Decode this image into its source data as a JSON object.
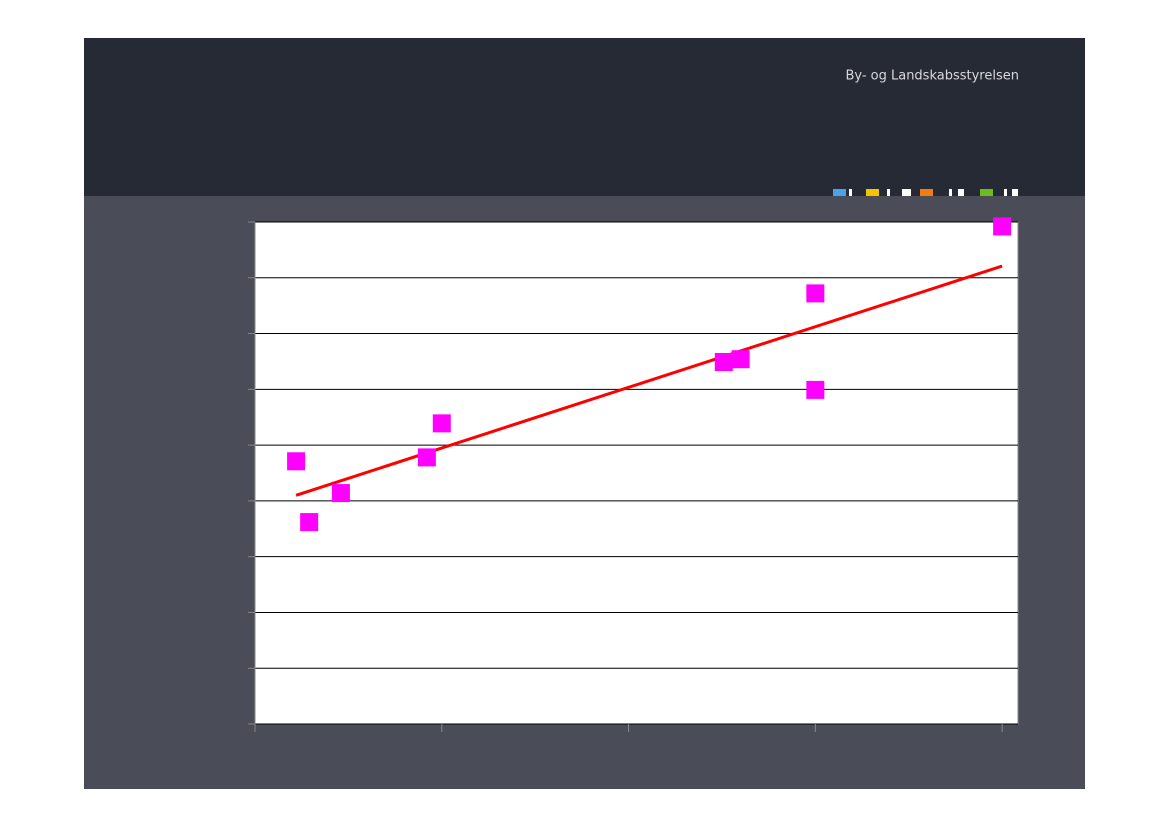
{
  "brand": "By- og Landskabsstyrelsen",
  "chart_data": {
    "type": "scatter",
    "xlim": [
      0,
      4.085
    ],
    "xticks": [
      0,
      1,
      2,
      3,
      4
    ],
    "ylim": [
      0,
      9
    ],
    "yticks": [
      0,
      1,
      2,
      3,
      4,
      5,
      6,
      7,
      8,
      9
    ],
    "grid": true,
    "series": [
      {
        "color": "#ff00ff",
        "x": [
          0.22,
          0.29,
          0.46,
          0.92,
          1.0,
          2.51,
          2.6,
          3.0,
          3.0,
          4.0
        ],
        "values": [
          4.71,
          3.62,
          4.14,
          4.78,
          5.39,
          6.49,
          6.54,
          7.72,
          5.99,
          8.92
        ]
      }
    ],
    "trendline": {
      "color": "#ff0000",
      "x": [
        0.22,
        4.0
      ],
      "values": [
        4.1,
        8.21
      ]
    }
  }
}
